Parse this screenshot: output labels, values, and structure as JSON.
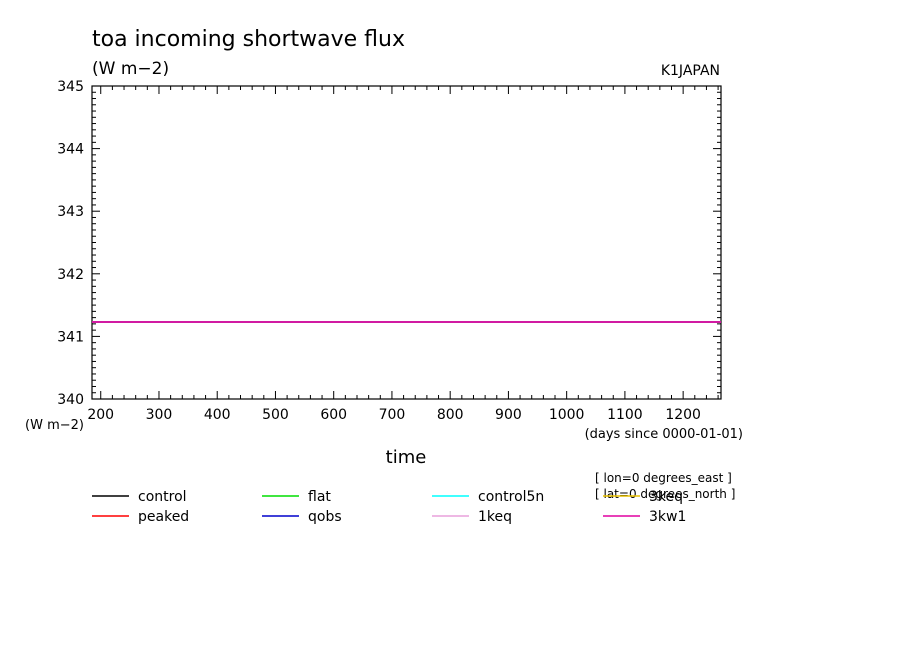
{
  "chart_data": {
    "type": "line",
    "title": "toa incoming shortwave flux",
    "subtitle": "(W m−2)",
    "top_right_label": "K1JAPAN",
    "xlabel": "time",
    "x_units": "(days since 0000-01-01)",
    "y_units": "(W m−2)",
    "xlim": [
      185,
      1265
    ],
    "ylim": [
      340,
      345
    ],
    "x_ticks": [
      200,
      300,
      400,
      500,
      600,
      700,
      800,
      900,
      1000,
      1100,
      1200
    ],
    "y_ticks": [
      340,
      341,
      342,
      343,
      344,
      345
    ],
    "grid": false,
    "legend_position": "bottom",
    "annotations": [
      "[ lon=0 degrees_east ]",
      "[ lat=0 degrees_north ]"
    ],
    "series": [
      {
        "name": "control",
        "color": "#000000",
        "x": [
          185,
          1265
        ],
        "y": [
          341.23,
          341.23
        ]
      },
      {
        "name": "flat",
        "color": "#00dd00",
        "x": [
          185,
          1265
        ],
        "y": [
          341.23,
          341.23
        ]
      },
      {
        "name": "control5n",
        "color": "#00ffff",
        "x": [
          185,
          1265
        ],
        "y": [
          341.23,
          341.23
        ]
      },
      {
        "name": "3keq",
        "color": "#e8c000",
        "x": [
          185,
          1265
        ],
        "y": [
          341.23,
          341.23
        ]
      },
      {
        "name": "peaked",
        "color": "#ff0000",
        "x": [
          185,
          1265
        ],
        "y": [
          341.23,
          341.23
        ]
      },
      {
        "name": "qobs",
        "color": "#0000cc",
        "x": [
          185,
          1265
        ],
        "y": [
          341.23,
          341.23
        ]
      },
      {
        "name": "1keq",
        "color": "#e8a0dc",
        "x": [
          185,
          1265
        ],
        "y": [
          341.23,
          341.23
        ]
      },
      {
        "name": "3kw1",
        "color": "#e000a0",
        "x": [
          185,
          1265
        ],
        "y": [
          341.23,
          341.23
        ]
      }
    ]
  }
}
